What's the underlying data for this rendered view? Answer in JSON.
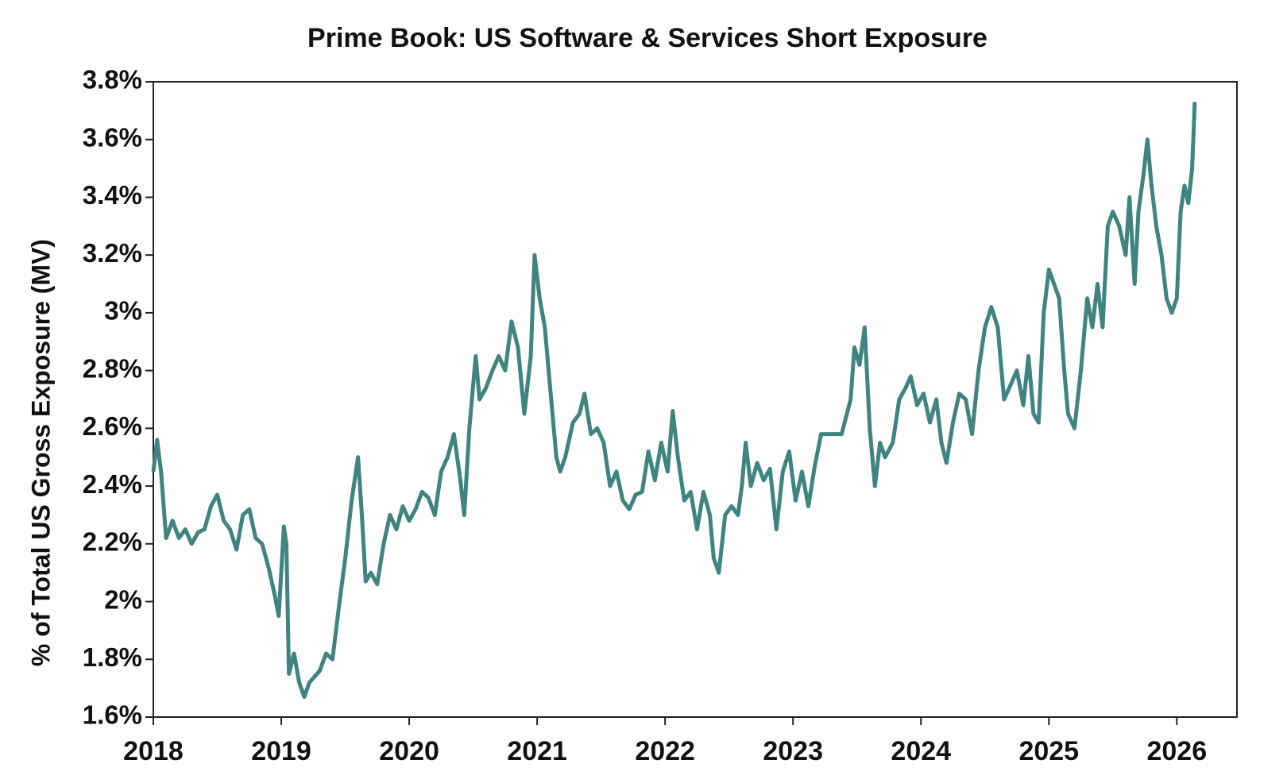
{
  "chart_data": {
    "type": "line",
    "title": "Prime Book: US Software & Services Short Exposure",
    "y_label": "% of Total US Gross Exposure (MV)",
    "x": [
      2018.0,
      2018.03,
      2018.06,
      2018.1,
      2018.15,
      2018.2,
      2018.25,
      2018.3,
      2018.35,
      2018.4,
      2018.45,
      2018.5,
      2018.55,
      2018.6,
      2018.65,
      2018.7,
      2018.75,
      2018.8,
      2018.85,
      2018.9,
      2018.95,
      2018.98,
      2019.0,
      2019.02,
      2019.04,
      2019.06,
      2019.1,
      2019.14,
      2019.18,
      2019.22,
      2019.3,
      2019.35,
      2019.4,
      2019.45,
      2019.5,
      2019.55,
      2019.6,
      2019.63,
      2019.66,
      2019.7,
      2019.75,
      2019.8,
      2019.85,
      2019.9,
      2019.95,
      2020.0,
      2020.05,
      2020.1,
      2020.15,
      2020.2,
      2020.25,
      2020.3,
      2020.35,
      2020.4,
      2020.43,
      2020.47,
      2020.52,
      2020.55,
      2020.6,
      2020.65,
      2020.7,
      2020.75,
      2020.8,
      2020.85,
      2020.9,
      2020.95,
      2020.98,
      2021.02,
      2021.06,
      2021.1,
      2021.15,
      2021.18,
      2021.22,
      2021.28,
      2021.33,
      2021.37,
      2021.42,
      2021.47,
      2021.52,
      2021.57,
      2021.62,
      2021.67,
      2021.72,
      2021.77,
      2021.82,
      2021.87,
      2021.92,
      2021.97,
      2022.02,
      2022.06,
      2022.1,
      2022.15,
      2022.2,
      2022.25,
      2022.3,
      2022.35,
      2022.38,
      2022.42,
      2022.47,
      2022.52,
      2022.57,
      2022.6,
      2022.63,
      2022.67,
      2022.72,
      2022.77,
      2022.82,
      2022.87,
      2022.92,
      2022.97,
      2023.02,
      2023.07,
      2023.12,
      2023.17,
      2023.22,
      2023.3,
      2023.38,
      2023.45,
      2023.48,
      2023.52,
      2023.56,
      2023.6,
      2023.64,
      2023.68,
      2023.72,
      2023.78,
      2023.83,
      2023.88,
      2023.92,
      2023.97,
      2024.02,
      2024.07,
      2024.12,
      2024.16,
      2024.2,
      2024.25,
      2024.3,
      2024.35,
      2024.4,
      2024.45,
      2024.5,
      2024.55,
      2024.6,
      2024.65,
      2024.7,
      2024.75,
      2024.8,
      2024.84,
      2024.88,
      2024.92,
      2024.96,
      2025.0,
      2025.04,
      2025.08,
      2025.12,
      2025.15,
      2025.2,
      2025.25,
      2025.3,
      2025.34,
      2025.38,
      2025.42,
      2025.46,
      2025.5,
      2025.55,
      2025.6,
      2025.63,
      2025.67,
      2025.7,
      2025.74,
      2025.77,
      2025.8,
      2025.84,
      2025.88,
      2025.92,
      2025.96,
      2026.0,
      2026.03,
      2026.06,
      2026.09,
      2026.12,
      2026.14
    ],
    "series": [
      {
        "color": "#3f8480",
        "values": [
          2.45,
          2.56,
          2.45,
          2.22,
          2.28,
          2.22,
          2.25,
          2.2,
          2.24,
          2.25,
          2.33,
          2.37,
          2.28,
          2.25,
          2.18,
          2.3,
          2.32,
          2.22,
          2.2,
          2.12,
          2.02,
          1.95,
          2.1,
          2.26,
          2.2,
          1.75,
          1.82,
          1.72,
          1.67,
          1.72,
          1.76,
          1.82,
          1.8,
          1.98,
          2.15,
          2.35,
          2.5,
          2.3,
          2.07,
          2.1,
          2.06,
          2.2,
          2.3,
          2.25,
          2.33,
          2.28,
          2.32,
          2.38,
          2.36,
          2.3,
          2.45,
          2.5,
          2.58,
          2.42,
          2.3,
          2.6,
          2.85,
          2.7,
          2.74,
          2.8,
          2.85,
          2.8,
          2.97,
          2.88,
          2.65,
          2.85,
          3.2,
          3.05,
          2.95,
          2.75,
          2.5,
          2.45,
          2.5,
          2.62,
          2.65,
          2.72,
          2.58,
          2.6,
          2.55,
          2.4,
          2.45,
          2.35,
          2.32,
          2.37,
          2.38,
          2.52,
          2.42,
          2.55,
          2.45,
          2.66,
          2.5,
          2.35,
          2.38,
          2.25,
          2.38,
          2.3,
          2.15,
          2.1,
          2.3,
          2.33,
          2.3,
          2.4,
          2.55,
          2.4,
          2.48,
          2.42,
          2.46,
          2.25,
          2.45,
          2.52,
          2.35,
          2.45,
          2.33,
          2.47,
          2.58,
          2.58,
          2.58,
          2.7,
          2.88,
          2.82,
          2.95,
          2.6,
          2.4,
          2.55,
          2.5,
          2.55,
          2.7,
          2.74,
          2.78,
          2.68,
          2.72,
          2.62,
          2.7,
          2.55,
          2.48,
          2.62,
          2.72,
          2.7,
          2.58,
          2.8,
          2.95,
          3.02,
          2.95,
          2.7,
          2.75,
          2.8,
          2.68,
          2.85,
          2.65,
          2.62,
          3.0,
          3.15,
          3.1,
          3.05,
          2.8,
          2.65,
          2.6,
          2.8,
          3.05,
          2.95,
          3.1,
          2.95,
          3.3,
          3.35,
          3.3,
          3.2,
          3.4,
          3.1,
          3.35,
          3.48,
          3.6,
          3.45,
          3.3,
          3.2,
          3.05,
          3.0,
          3.05,
          3.35,
          3.44,
          3.38,
          3.5,
          3.73
        ]
      }
    ],
    "xlim": [
      2018,
      2026.47
    ],
    "xticks": [
      2018,
      2019,
      2020,
      2021,
      2022,
      2023,
      2024,
      2025,
      2026
    ],
    "ylim": [
      1.6,
      3.8
    ],
    "yticks": [
      {
        "value": 1.6,
        "label": "1.6%"
      },
      {
        "value": 1.8,
        "label": "1.8%"
      },
      {
        "value": 2,
        "label": "2%"
      },
      {
        "value": 2.2,
        "label": "2.2%"
      },
      {
        "value": 2.4,
        "label": "2.4%"
      },
      {
        "value": 2.6,
        "label": "2.6%"
      },
      {
        "value": 2.8,
        "label": "2.8%"
      },
      {
        "value": 3,
        "label": "3%"
      },
      {
        "value": 3.2,
        "label": "3.2%"
      },
      {
        "value": 3.4,
        "label": "3.4%"
      },
      {
        "value": 3.6,
        "label": "3.6%"
      },
      {
        "value": 3.8,
        "label": "3.8%"
      }
    ]
  }
}
